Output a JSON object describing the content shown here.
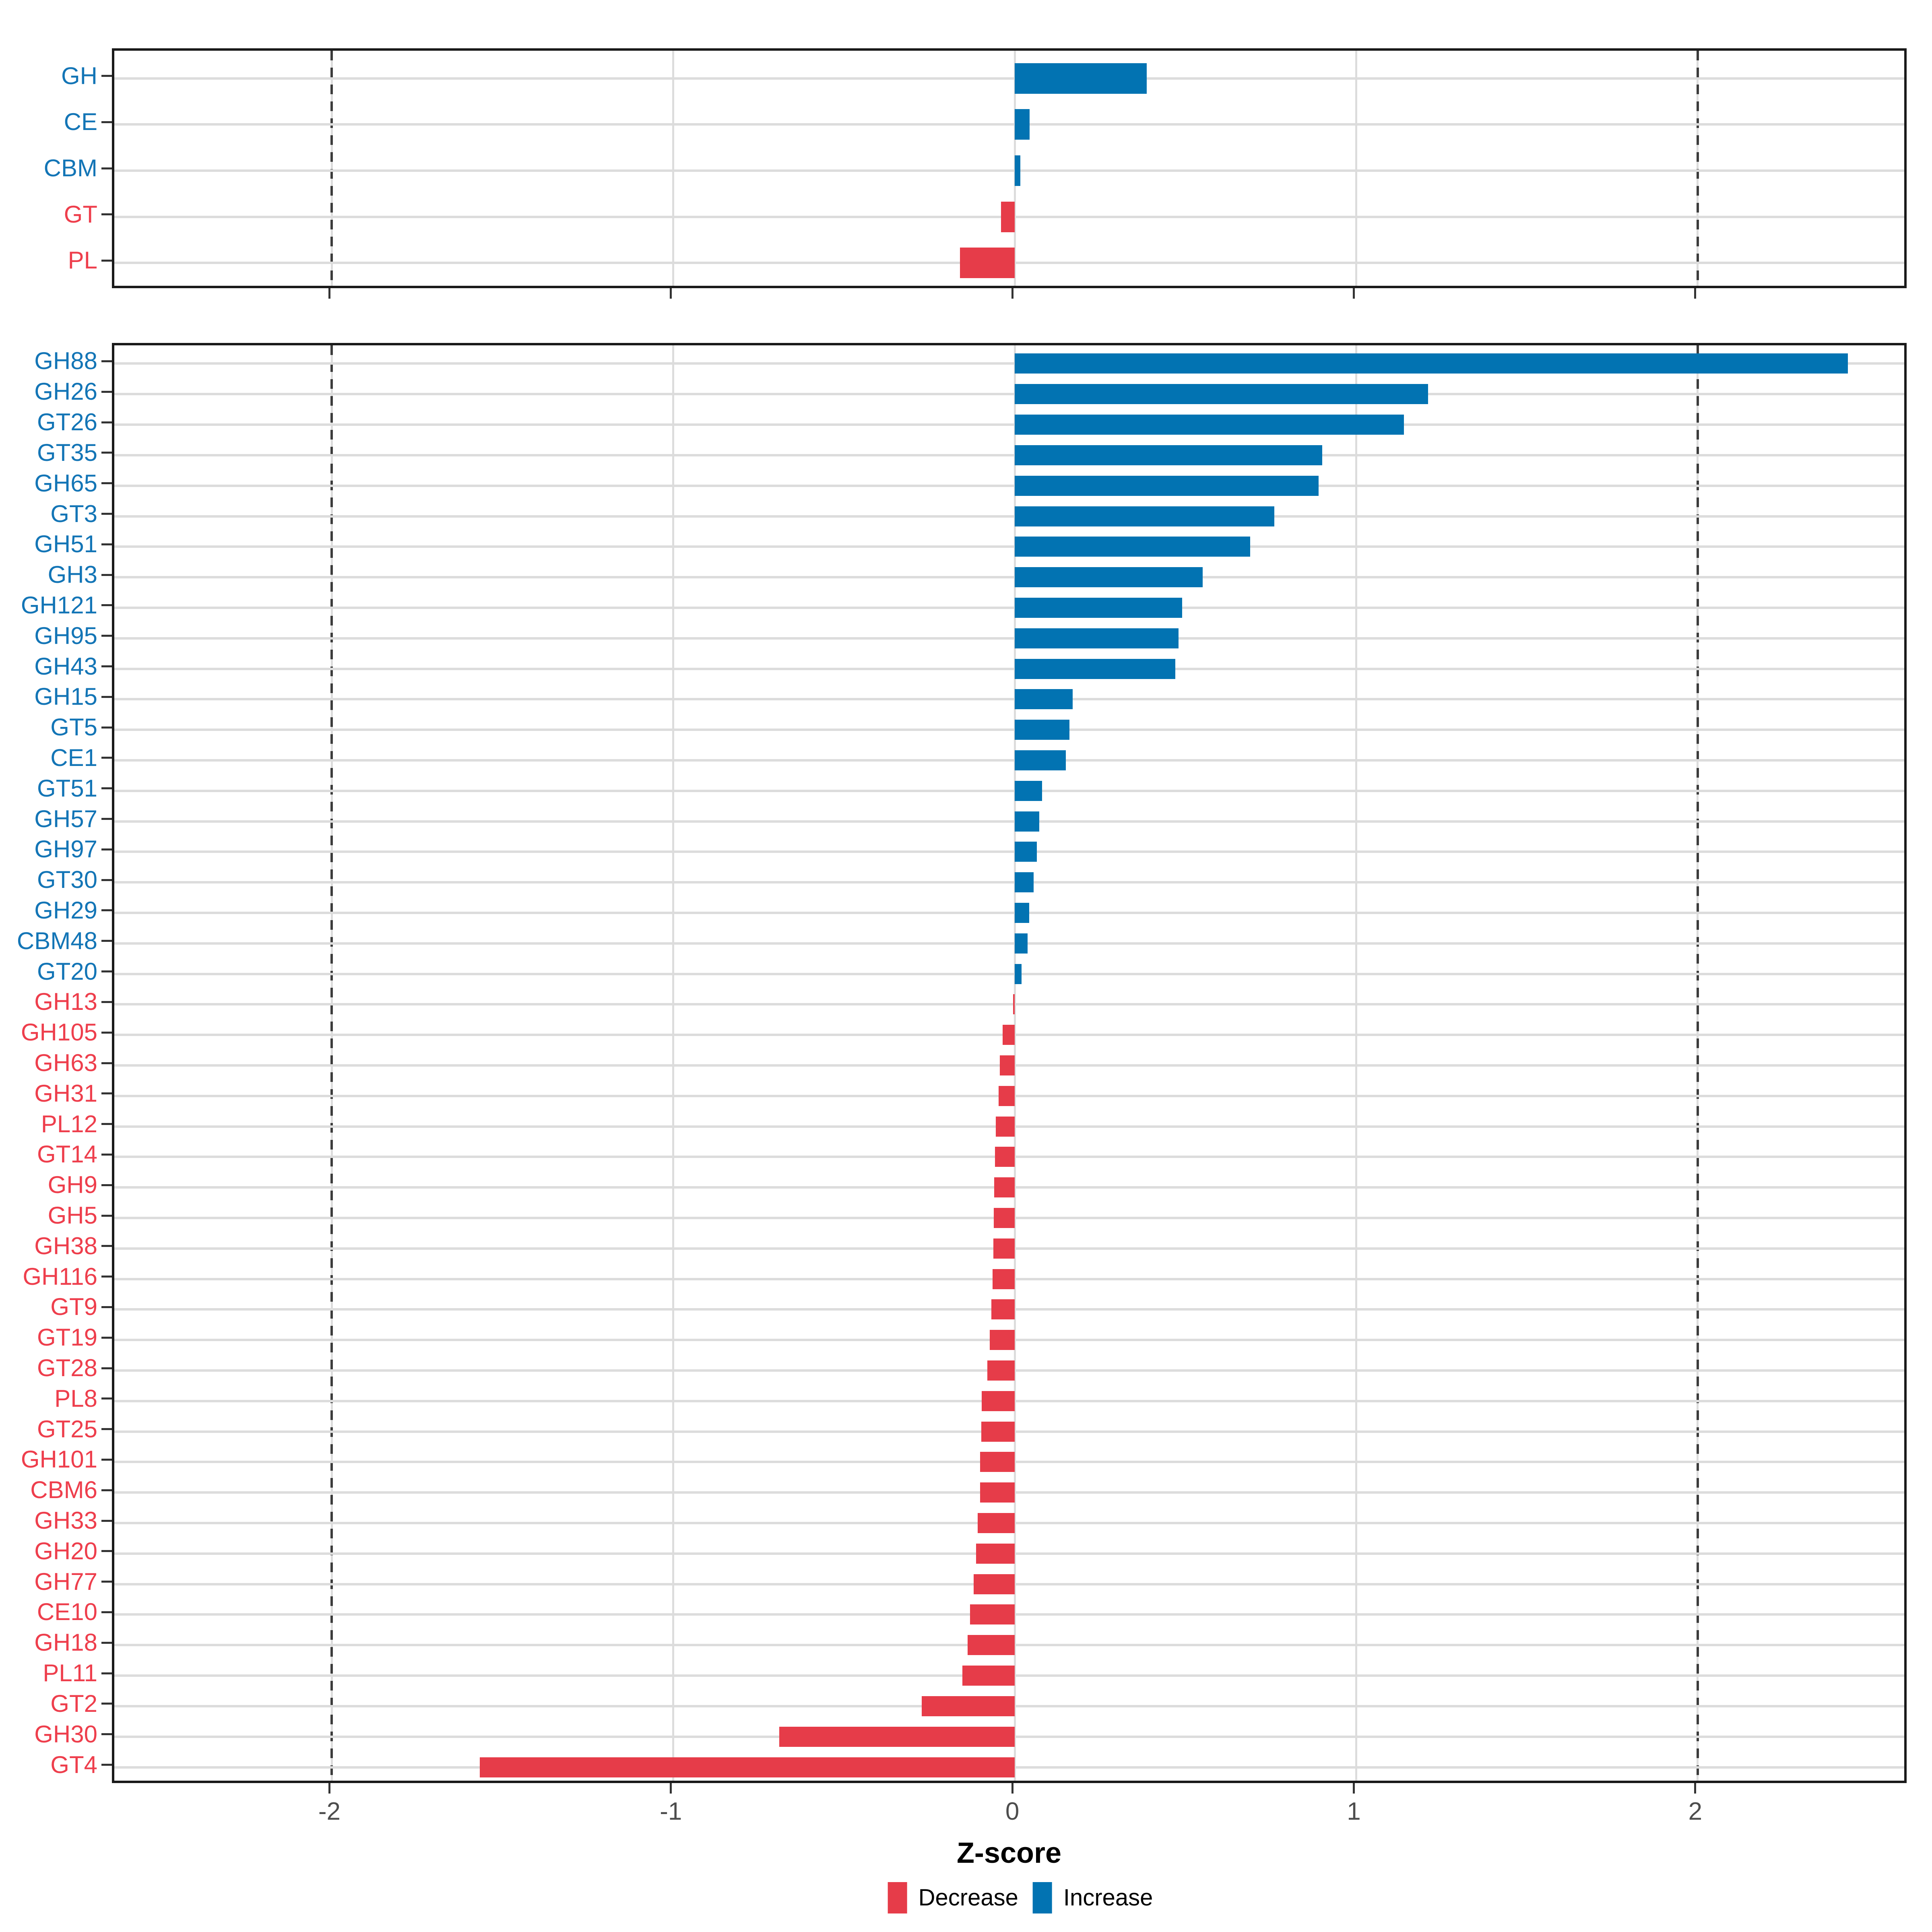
{
  "colors": {
    "increase": "#0273b2",
    "decrease": "#e63c49",
    "label_increase": "#1375b6",
    "label_decrease": "#ee3e4c",
    "grid": "#dcdcdc",
    "dashed_line": "#3c3c3c",
    "tick": "#333333",
    "axis_text": "#4d4d4d",
    "panel_border": "#1a1a1a"
  },
  "axis": {
    "label": "Z-score",
    "ticks": [
      -2,
      -1,
      0,
      1,
      2
    ],
    "xmin": -2.637,
    "xmax": 2.619,
    "dashed_at": [
      -2,
      2
    ]
  },
  "legend": {
    "items": [
      {
        "label": "Decrease",
        "color_key": "decrease"
      },
      {
        "label": "Increase",
        "color_key": "increase"
      }
    ]
  },
  "chart_data": {
    "type": "bar",
    "orientation": "horizontal",
    "xlabel": "Z-score",
    "xlim": [
      -2.637,
      2.619
    ],
    "grid": true,
    "legend_position": "bottom",
    "series_colors": {
      "Increase": "#0273b2",
      "Decrease": "#e63c49"
    },
    "panels": [
      {
        "name": "class_summary",
        "categories": [
          "GH",
          "CE",
          "CBM",
          "GT",
          "PL"
        ],
        "values": [
          0.386,
          0.044,
          0.016,
          -0.04,
          -0.16
        ]
      },
      {
        "name": "family_detail",
        "categories": [
          "GH88",
          "GH26",
          "GT26",
          "GT35",
          "GH65",
          "GT3",
          "GH51",
          "GH3",
          "GH121",
          "GH95",
          "GH43",
          "GH15",
          "GT5",
          "CE1",
          "GT51",
          "GH57",
          "GH97",
          "GT30",
          "GH29",
          "CBM48",
          "GT20",
          "GH13",
          "GH105",
          "GH63",
          "GH31",
          "PL12",
          "GT14",
          "GH9",
          "GH5",
          "GH38",
          "GH116",
          "GT9",
          "GT19",
          "GT28",
          "PL8",
          "GT25",
          "GH101",
          "CBM6",
          "GH33",
          "GH20",
          "GH77",
          "CE10",
          "GH18",
          "PL11",
          "GT2",
          "GH30",
          "GT4"
        ],
        "values": [
          2.44,
          1.21,
          1.14,
          0.9,
          0.89,
          0.76,
          0.69,
          0.55,
          0.49,
          0.48,
          0.47,
          0.17,
          0.16,
          0.15,
          0.08,
          0.072,
          0.065,
          0.055,
          0.042,
          0.038,
          0.02,
          -0.005,
          -0.035,
          -0.044,
          -0.047,
          -0.055,
          -0.058,
          -0.06,
          -0.062,
          -0.063,
          -0.065,
          -0.069,
          -0.073,
          -0.08,
          -0.097,
          -0.098,
          -0.101,
          -0.102,
          -0.109,
          -0.113,
          -0.12,
          -0.131,
          -0.138,
          -0.153,
          -0.273,
          -0.69,
          -1.567
        ]
      }
    ]
  },
  "layout_note_values_are_data_not_layout": "all numeric z-scores above are read from the rendered bars"
}
